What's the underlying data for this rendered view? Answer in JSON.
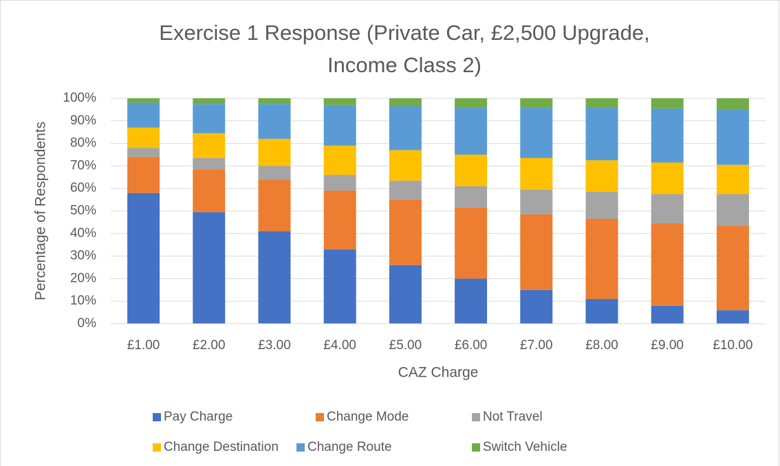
{
  "chart_data": {
    "type": "stacked_bar",
    "title": "Exercise 1 Response (Private Car, £2,500 Upgrade,",
    "title_line2": "Income Class 2)",
    "x_label": "CAZ Charge",
    "y_label": "Percentage of Respondents",
    "categories": [
      "£1.00",
      "£2.00",
      "£3.00",
      "£4.00",
      "£5.00",
      "£6.00",
      "£7.00",
      "£8.00",
      "£9.00",
      "£10.00"
    ],
    "series": [
      {
        "name": "Pay Charge",
        "color": "#4472c4",
        "values": [
          58,
          49.5,
          41,
          33,
          26,
          20,
          15,
          11,
          8,
          6
        ]
      },
      {
        "name": "Change Mode",
        "color": "#ed7d31",
        "values": [
          16,
          19,
          23,
          26,
          29,
          31.5,
          33.5,
          35.5,
          36.5,
          37.5
        ]
      },
      {
        "name": "Not Travel",
        "color": "#a5a5a5",
        "values": [
          4,
          5,
          6,
          7,
          8.5,
          9.5,
          11,
          12,
          13,
          14
        ]
      },
      {
        "name": "Change Destination",
        "color": "#ffc000",
        "values": [
          9,
          11,
          12,
          13,
          13.5,
          14,
          14,
          14,
          14,
          13
        ]
      },
      {
        "name": "Change Route",
        "color": "#5b9bd5",
        "values": [
          11,
          13,
          15.5,
          18,
          19.5,
          21,
          22.5,
          23.5,
          24,
          24.5
        ]
      },
      {
        "name": "Switch Vehicle",
        "color": "#70ad47",
        "values": [
          2,
          2.5,
          2.5,
          3,
          3.5,
          4,
          4,
          4,
          4.5,
          5
        ]
      }
    ],
    "ylim": [
      0,
      100
    ],
    "yticks": [
      {
        "value": 0,
        "label": "0%"
      },
      {
        "value": 10,
        "label": "10%"
      },
      {
        "value": 20,
        "label": "20%"
      },
      {
        "value": 30,
        "label": "30%"
      },
      {
        "value": 40,
        "label": "40%"
      },
      {
        "value": 50,
        "label": "50%"
      },
      {
        "value": 60,
        "label": "60%"
      },
      {
        "value": 70,
        "label": "70%"
      },
      {
        "value": 80,
        "label": "80%"
      },
      {
        "value": 90,
        "label": "90%"
      },
      {
        "value": 100,
        "label": "100%"
      }
    ],
    "grid": true,
    "legend": "bottom"
  }
}
